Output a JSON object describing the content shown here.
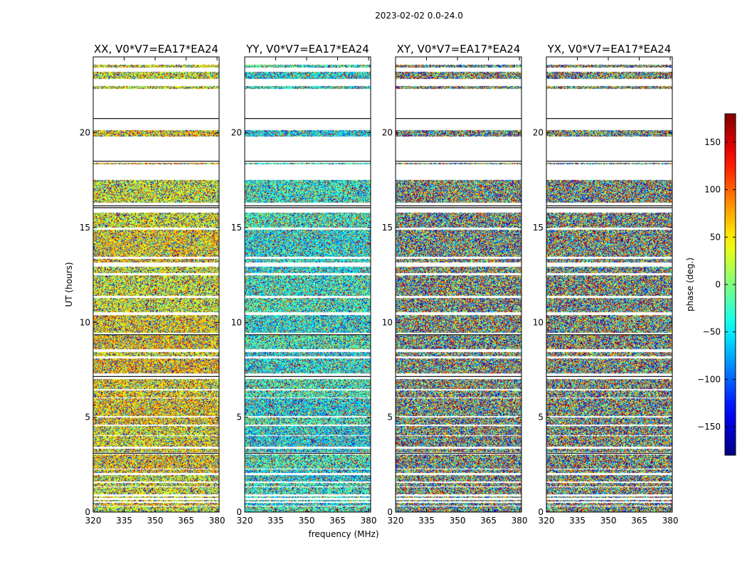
{
  "figure": {
    "suptitle": "2023-02-02 0.0-24.0"
  },
  "colors": {
    "cmap": "jet",
    "blank": "#ffffff",
    "frame": "#000000",
    "gap_line": "#000000"
  },
  "chart_data": {
    "type": "heatmap",
    "description_unit": "baseline phase waterfall",
    "xlabel": "frequency (MHz)",
    "ylabel": "UT (hours)",
    "xlim": [
      320,
      381
    ],
    "ylim": [
      0,
      24
    ],
    "x_ticks": [
      320,
      335,
      350,
      365,
      380
    ],
    "y_ticks": [
      0,
      5,
      10,
      15,
      20
    ],
    "panels": [
      {
        "title": "XX, V0*V7=EA17*EA24",
        "mean_phase": 50,
        "coherence": 0.45
      },
      {
        "title": "YY, V0*V7=EA17*EA24",
        "mean_phase": -40,
        "coherence": 0.45
      },
      {
        "title": "XY, V0*V7=EA17*EA24",
        "mean_phase": 0,
        "coherence": 0.05
      },
      {
        "title": "YX, V0*V7=EA17*EA24",
        "mean_phase": 0,
        "coherence": 0.05
      }
    ],
    "data_rows_hours": [
      [
        0.0,
        0.3
      ],
      [
        0.35,
        0.5
      ],
      [
        0.55,
        0.65
      ],
      [
        0.75,
        0.82
      ],
      [
        0.95,
        1.3
      ],
      [
        1.35,
        1.55
      ],
      [
        1.6,
        1.95
      ],
      [
        2.05,
        2.25
      ],
      [
        2.3,
        3.05
      ],
      [
        3.15,
        3.35
      ],
      [
        3.45,
        4.0
      ],
      [
        4.05,
        4.55
      ],
      [
        4.6,
        5.0
      ],
      [
        5.05,
        6.0
      ],
      [
        6.05,
        6.4
      ],
      [
        6.5,
        7.0
      ],
      [
        7.3,
        8.1
      ],
      [
        8.2,
        8.45
      ],
      [
        8.6,
        9.35
      ],
      [
        9.45,
        10.4
      ],
      [
        10.55,
        11.3
      ],
      [
        11.4,
        12.5
      ],
      [
        12.6,
        12.95
      ],
      [
        13.15,
        13.35
      ],
      [
        13.45,
        14.9
      ],
      [
        15.0,
        15.8
      ],
      [
        16.3,
        17.5
      ],
      [
        18.35,
        18.42
      ],
      [
        19.8,
        20.15
      ],
      [
        22.3,
        22.45
      ],
      [
        22.85,
        23.2
      ],
      [
        23.45,
        23.6
      ]
    ],
    "gap_line_hours": [
      3.1,
      7.15,
      9.35,
      16.05,
      16.15,
      18.5,
      20.75
    ],
    "colorbar": {
      "label": "phase (deg.)",
      "range": [
        -180,
        180
      ],
      "ticks": [
        -150,
        -100,
        -50,
        0,
        50,
        100,
        150
      ],
      "tick_labels": [
        "−150",
        "−100",
        "−50",
        "0",
        "50",
        "100",
        "150"
      ]
    }
  }
}
